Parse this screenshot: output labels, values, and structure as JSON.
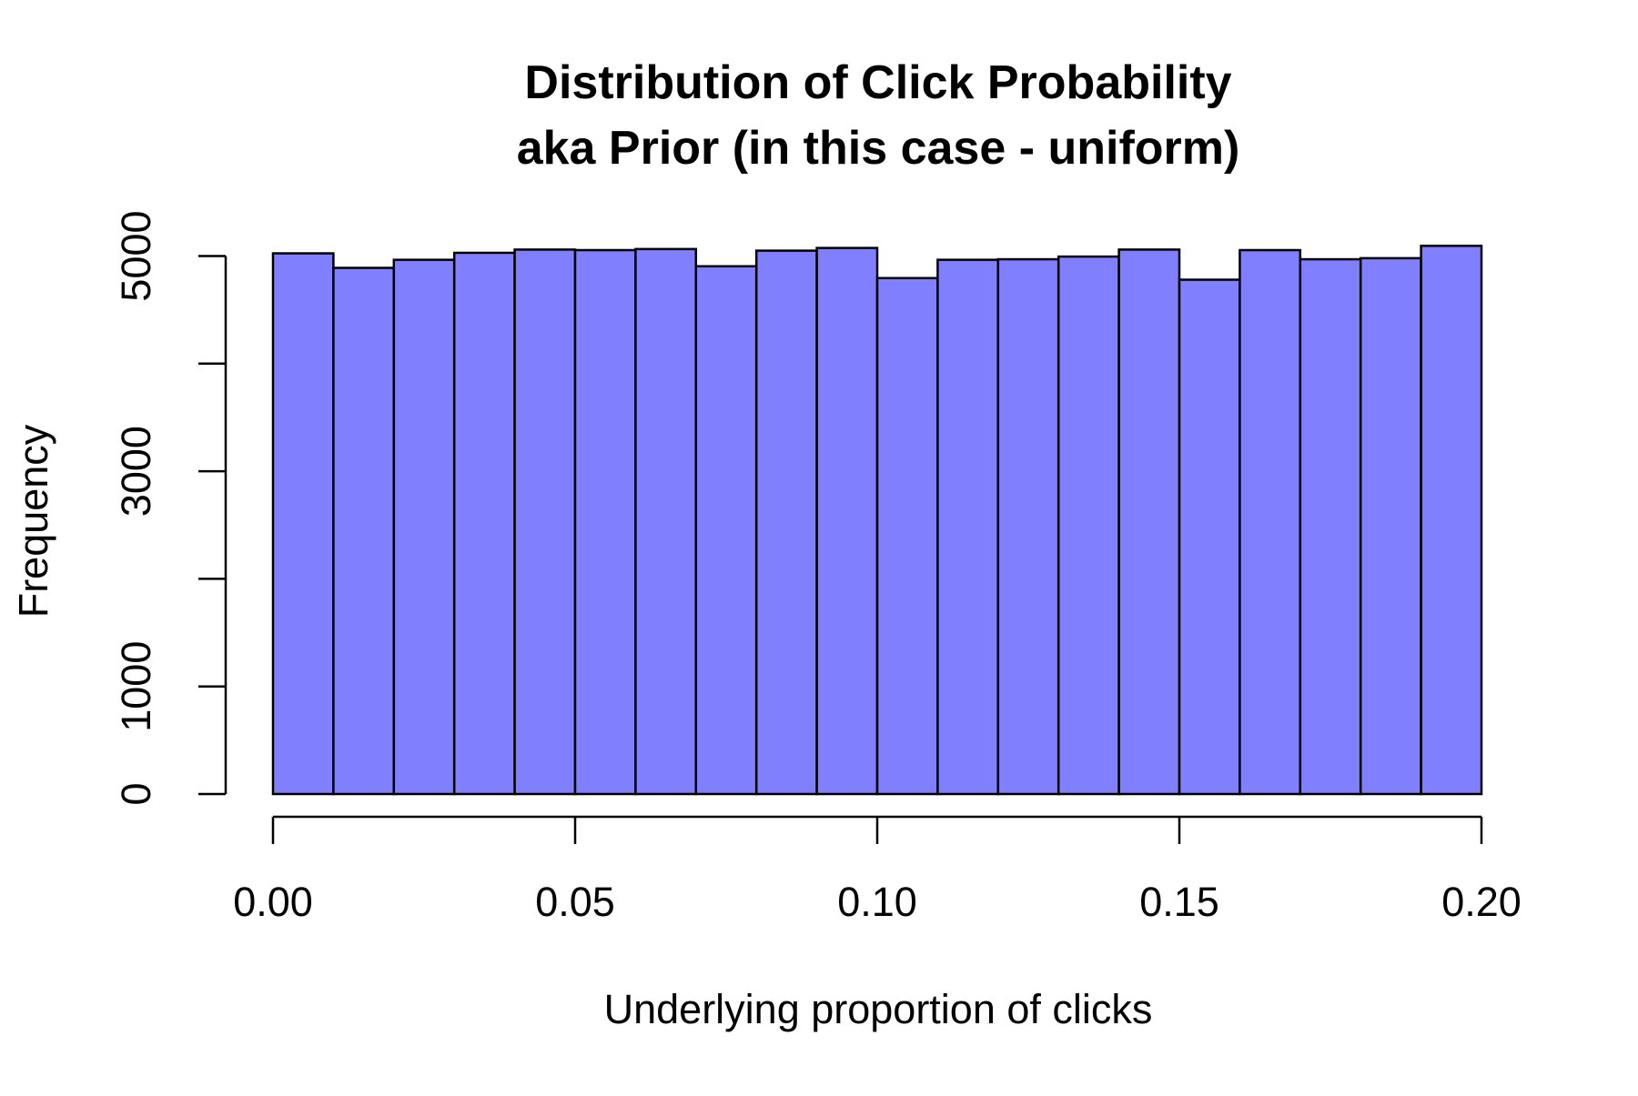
{
  "chart_data": {
    "type": "bar",
    "title": "Distribution of Click Probability",
    "subtitle": "aka Prior (in this case - uniform)",
    "xlabel": "Underlying proportion of clicks",
    "ylabel": "Frequency",
    "bar_color": "#8080FF",
    "edge_color": "#000000",
    "grid": false,
    "legend": "none",
    "bin_width": 0.01,
    "bin_starts": [
      0.0,
      0.01,
      0.02,
      0.03,
      0.04,
      0.05,
      0.06,
      0.07,
      0.08,
      0.09,
      0.1,
      0.11,
      0.12,
      0.13,
      0.14,
      0.15,
      0.16,
      0.17,
      0.18,
      0.19
    ],
    "values": [
      5025,
      4890,
      4965,
      5030,
      5060,
      5055,
      5065,
      4905,
      5050,
      5075,
      4795,
      4965,
      4970,
      4995,
      5060,
      4780,
      5055,
      4970,
      4980,
      5095
    ],
    "xlim": [
      0,
      0.2
    ],
    "ylim": [
      0,
      5200
    ],
    "x_ticks": [
      0.0,
      0.05,
      0.1,
      0.15,
      0.2
    ],
    "x_tick_labels": [
      "0.00",
      "0.05",
      "0.10",
      "0.15",
      "0.20"
    ],
    "y_ticks": [
      0,
      1000,
      2000,
      3000,
      4000,
      5000
    ],
    "y_tick_labels": [
      "0",
      "1000",
      "",
      "3000",
      "",
      "5000"
    ]
  }
}
